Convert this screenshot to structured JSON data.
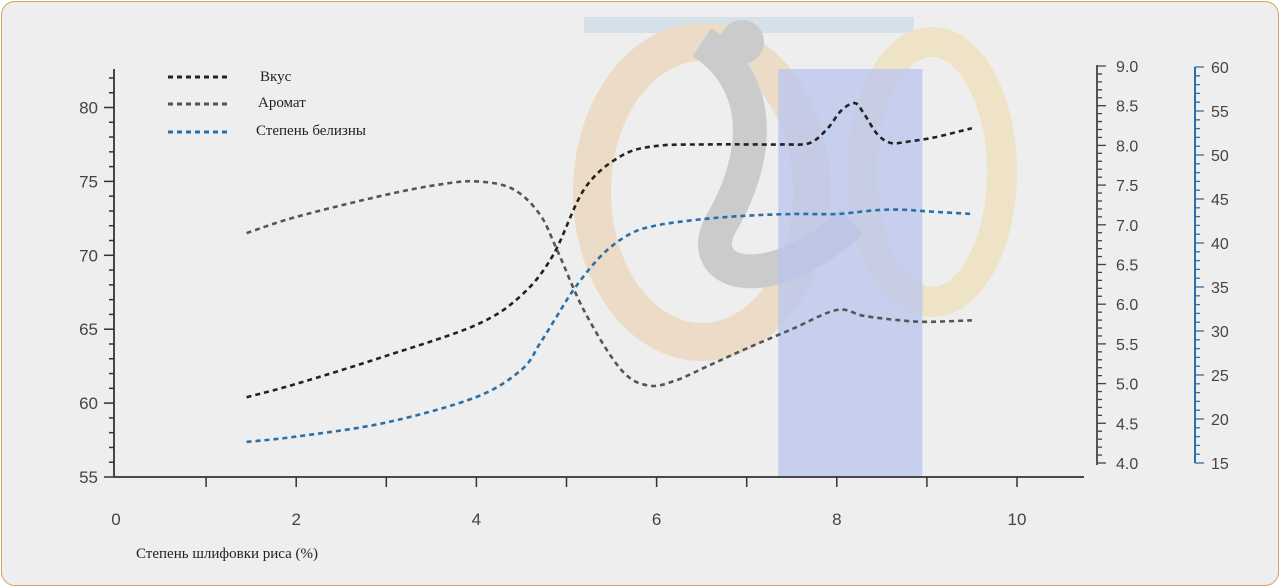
{
  "chart_data": {
    "type": "line",
    "xlabel": "Степень шлифовки риса (%)",
    "x_ticks": [
      "0",
      "2",
      "4",
      "6",
      "8",
      "10"
    ],
    "xlim": [
      0,
      10.8
    ],
    "left_axis": {
      "ticks": [
        "55",
        "60",
        "65",
        "70",
        "75",
        "80"
      ],
      "ylim": [
        55,
        82.5
      ]
    },
    "right_axis_1": {
      "ticks": [
        "4.0",
        "4.5",
        "5.0",
        "5.5",
        "6.0",
        "6.5",
        "7.0",
        "7.5",
        "8.0",
        "8.5",
        "9.0"
      ],
      "ylim": [
        4.0,
        9.0
      ],
      "color": "#444444"
    },
    "right_axis_2": {
      "ticks": [
        "15",
        "20",
        "25",
        "30",
        "35",
        "40",
        "45",
        "50",
        "55",
        "60"
      ],
      "ylim": [
        15,
        60
      ],
      "color": "#2b6fa8"
    },
    "highlight_band": {
      "x_from": 7.35,
      "x_to": 8.95,
      "color": "#b8c6ee"
    },
    "legend_position": "top-left",
    "series": [
      {
        "name": "Вкус",
        "axis": "left",
        "color": "#222222",
        "x": [
          1.45,
          2.0,
          3.0,
          4.0,
          4.5,
          4.85,
          5.2,
          5.6,
          6.0,
          6.6,
          7.0,
          7.4,
          7.7,
          7.9,
          8.05,
          8.2,
          8.3,
          8.45,
          8.6,
          8.8,
          9.1,
          9.5
        ],
        "y": [
          60.4,
          61.3,
          63.2,
          65.3,
          67.3,
          70.0,
          74.5,
          76.7,
          77.4,
          77.5,
          77.5,
          77.5,
          77.6,
          78.6,
          79.8,
          80.3,
          79.6,
          78.2,
          77.6,
          77.7,
          78.0,
          78.6
        ]
      },
      {
        "name": "Аромат",
        "axis": "left",
        "color": "#555555",
        "x": [
          1.45,
          2.0,
          3.0,
          3.6,
          4.0,
          4.4,
          4.7,
          4.9,
          5.2,
          5.6,
          5.9,
          6.2,
          6.6,
          7.0,
          7.5,
          8.0,
          8.3,
          8.7,
          9.0,
          9.5
        ],
        "y": [
          71.5,
          72.6,
          74.1,
          74.8,
          75.0,
          74.5,
          72.8,
          70.3,
          66.2,
          62.3,
          61.2,
          61.5,
          62.6,
          63.7,
          65.0,
          66.3,
          65.9,
          65.6,
          65.5,
          65.6
        ]
      },
      {
        "name": "Степень белизны",
        "axis": "right2",
        "color": "#2b6fa8",
        "x": [
          1.45,
          2.0,
          3.0,
          4.0,
          4.5,
          4.7,
          4.9,
          5.1,
          5.4,
          5.7,
          6.0,
          6.5,
          7.0,
          7.5,
          8.0,
          8.4,
          8.7,
          9.0,
          9.5
        ],
        "y": [
          17.4,
          18.0,
          19.6,
          22.5,
          25.6,
          28.5,
          31.8,
          35.0,
          38.7,
          41.0,
          42.0,
          42.7,
          43.1,
          43.3,
          43.3,
          43.7,
          43.8,
          43.6,
          43.3
        ]
      }
    ]
  }
}
